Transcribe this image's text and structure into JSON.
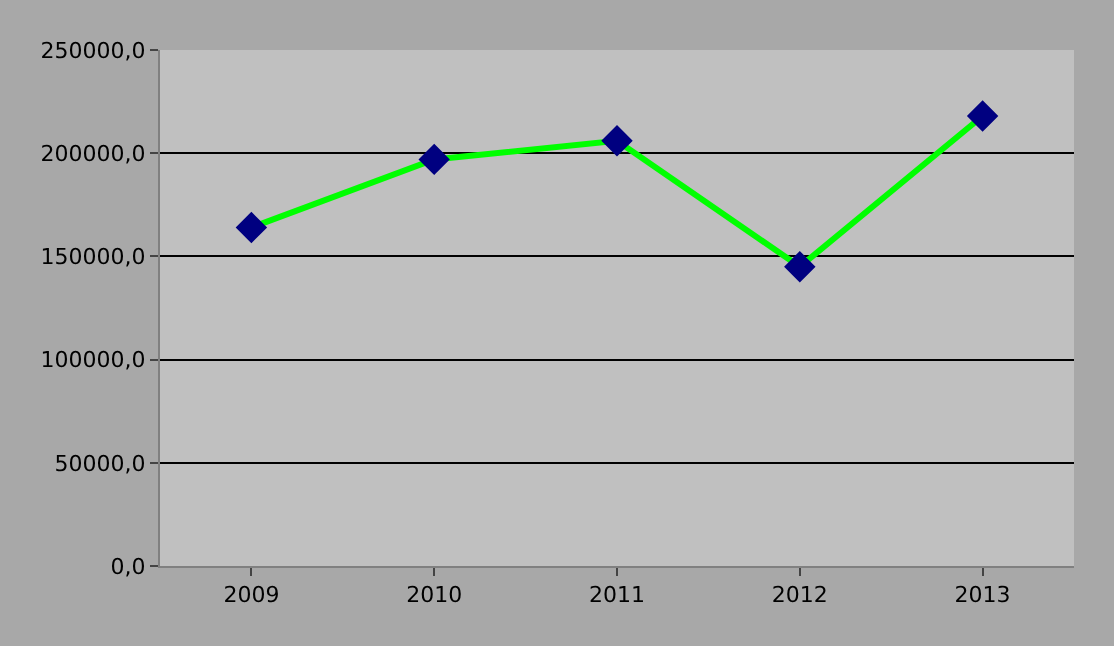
{
  "chart_data": {
    "type": "line",
    "categories": [
      "2009",
      "2010",
      "2011",
      "2012",
      "2013"
    ],
    "series": [
      {
        "color": "#00ff00",
        "colors": [
          "#000080",
          "#000080",
          "#000080",
          "#000080",
          "#000080"
        ],
        "values": [
          164000,
          197000,
          206000,
          145000,
          218000
        ]
      }
    ],
    "marker": "diamond",
    "line_style": "solid",
    "ylim": [
      0,
      250000
    ],
    "yticks": [
      {
        "value": 0,
        "label": "0,0"
      },
      {
        "value": 50000,
        "label": "50000,0"
      },
      {
        "value": 100000,
        "label": "100000,0"
      },
      {
        "value": 150000,
        "label": "150000,0"
      },
      {
        "value": 200000,
        "label": "200000,0"
      },
      {
        "value": 250000,
        "label": "250000,0"
      }
    ],
    "grid": "y",
    "legend": false
  }
}
